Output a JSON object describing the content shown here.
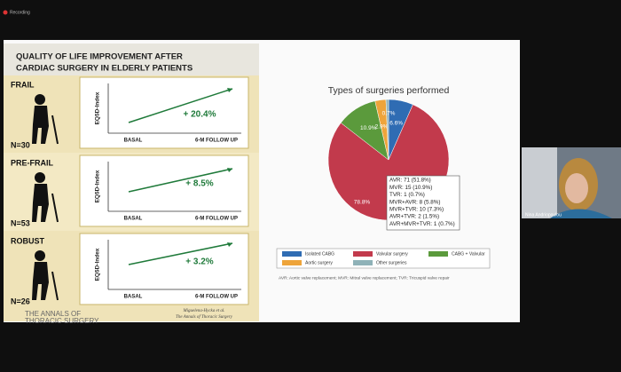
{
  "app": {
    "recording_label": "Recording",
    "participant_name": "Nina Andriopoulou"
  },
  "slide": {
    "title_lines": [
      "QUALITY OF LIFE IMPROVEMENT AFTER",
      "CARDIAC SURGERY IN ELDERLY PATIENTS"
    ],
    "groups": [
      {
        "label": "FRAIL",
        "n": "N=30",
        "y_axis_label": "EQ5D-Index",
        "x_labels": [
          "BASAL",
          "6-M FOLLOW UP"
        ],
        "change": "+ 20.4%"
      },
      {
        "label": "PRE-FRAIL",
        "n": "N=53",
        "y_axis_label": "EQ5D-Index",
        "x_labels": [
          "BASAL",
          "6-M FOLLOW UP"
        ],
        "change": "+ 8.5%"
      },
      {
        "label": "ROBUST",
        "n": "N=26",
        "y_axis_label": "EQ5D-Index",
        "x_labels": [
          "BASAL",
          "6-M FOLLOW UP"
        ],
        "change": "+ 3.2%"
      }
    ],
    "journal": [
      "THE ANNALS OF",
      "THORACIC SURGERY"
    ],
    "citation": [
      "Miguelena-Hycka et al.",
      "The Annals of Thoracic Surgery"
    ]
  },
  "chart_data": {
    "type": "pie",
    "title": "Types of surgeries performed",
    "categories": [
      "Isolated CABG",
      "Valvular surgery",
      "CABG + Valvular",
      "Aortic surgery",
      "Other surgeries"
    ],
    "values": [
      6.6,
      78.8,
      10.9,
      2.9,
      0.7
    ],
    "value_labels": [
      "6.6%",
      "78.8%",
      "10.9%",
      "2.9%",
      "0.7%"
    ],
    "colors": [
      "#2f6cb3",
      "#c23a4c",
      "#5b9a3c",
      "#eea43a",
      "#8fb2b8"
    ],
    "callout": [
      "AVR: 71 (51.8%)",
      "MVR: 15 (10.9%)",
      "TVR: 1 (0.7%)",
      "MVR+AVR: 8 (5.8%)",
      "MVR+TVR: 10 (7.3%)",
      "AVR+TVR: 2 (1.5%)",
      "AVR+MVR+TVR: 1 (0.7%)"
    ],
    "footnote": "AVR: Aortic valve replacement; MVR: Mitral valve replacement; TVR: Tricuspid valve repair"
  }
}
